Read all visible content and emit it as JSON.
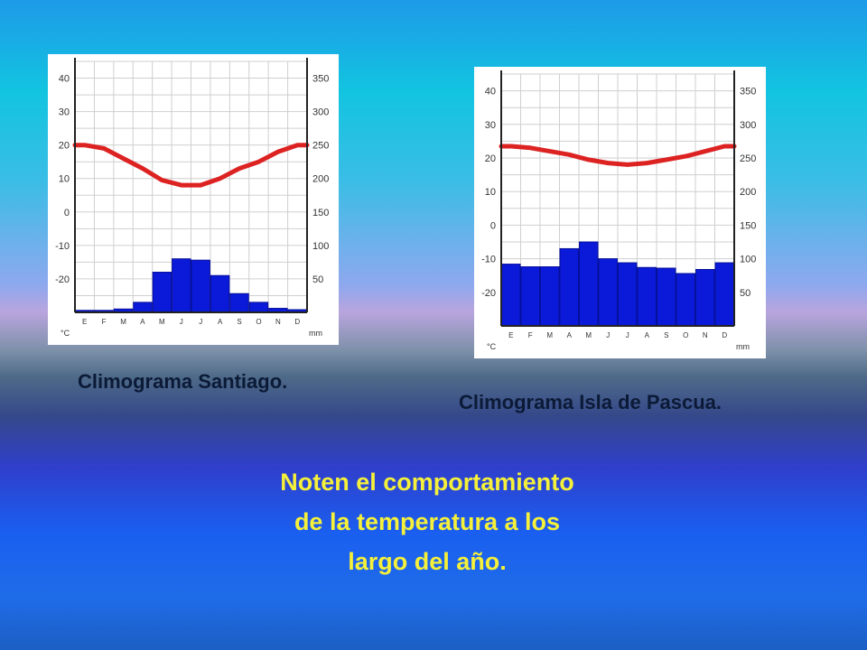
{
  "chart_data": [
    {
      "type": "bar",
      "title": "",
      "categories": [
        "E",
        "F",
        "M",
        "A",
        "M",
        "J",
        "J",
        "A",
        "S",
        "O",
        "N",
        "D"
      ],
      "series": [
        {
          "values": [
            3,
            3,
            5,
            15,
            60,
            80,
            78,
            55,
            28,
            15,
            6,
            4
          ]
        },
        {
          "values": [
            20,
            19,
            16,
            13,
            9.5,
            8,
            8,
            10,
            13,
            15,
            18,
            20
          ]
        }
      ],
      "y_left_ticks": [
        "40",
        "30",
        "20",
        "10",
        "0",
        "-10",
        "-20"
      ],
      "y_left_unit": "°C",
      "y_left_range": [
        -30,
        45
      ],
      "y_right_ticks": [
        "350",
        "300",
        "250",
        "200",
        "150",
        "100",
        "50"
      ],
      "y_right_unit": "mm",
      "y_right_range": [
        0,
        375
      ],
      "grid": true
    },
    {
      "type": "bar",
      "title": "",
      "categories": [
        "E",
        "F",
        "M",
        "A",
        "M",
        "J",
        "J",
        "A",
        "S",
        "O",
        "N",
        "D"
      ],
      "series": [
        {
          "values": [
            92,
            88,
            88,
            115,
            125,
            100,
            94,
            87,
            86,
            78,
            84,
            94
          ]
        },
        {
          "values": [
            23.5,
            23,
            22,
            21,
            19.5,
            18.5,
            18,
            18.5,
            19.5,
            20.5,
            22,
            23.5
          ]
        }
      ],
      "y_left_ticks": [
        "40",
        "30",
        "20",
        "10",
        "0",
        "-10",
        "-20"
      ],
      "y_left_unit": "°C",
      "y_left_range": [
        -30,
        45
      ],
      "y_right_ticks": [
        "350",
        "300",
        "250",
        "200",
        "150",
        "100",
        "50"
      ],
      "y_right_unit": "mm",
      "y_right_range": [
        0,
        375
      ],
      "grid": true
    }
  ],
  "captions": {
    "santiago": "Climograma Santiago.",
    "pascua": "Climograma Isla de Pascua."
  },
  "note": "Noten el comportamiento de la temperatura a los largo del año.",
  "colors": {
    "bars": "#0b1ad8",
    "temperature_line": "#dd2222",
    "note_text": "#f5f03a"
  }
}
